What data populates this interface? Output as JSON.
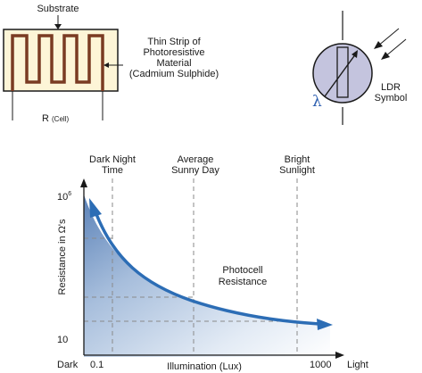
{
  "ldr_cell": {
    "substrate_label": "Substrate",
    "strip_label_line1": "Thin Strip of",
    "strip_label_line2": "Photoresistive",
    "strip_label_line3": "Material",
    "strip_label_line4": "(Cadmium Sulphide)",
    "resistance_label": "R",
    "resistance_sub": "(Cell)"
  },
  "ldr_symbol": {
    "lambda": "λ",
    "label_line1": "LDR",
    "label_line2": "Symbol"
  },
  "graph": {
    "markers": [
      {
        "line1": "Dark Night",
        "line2": "Time"
      },
      {
        "line1": "Average",
        "line2": "Sunny Day"
      },
      {
        "line1": "Bright",
        "line2": "Sunlight"
      }
    ],
    "y_axis_label": "Resistance in Ω's",
    "y_top_base": "10",
    "y_top_exp": "6",
    "y_bottom": "10",
    "x_label": "Illumination (Lux)",
    "x_left_word": "Dark",
    "x_left_value": "0.1",
    "x_right_value": "1000",
    "x_right_word": "Light",
    "curve_label_line1": "Photocell",
    "curve_label_line2": "Resistance"
  },
  "colors": {
    "substrate_fill": "#fdf5d7",
    "strip_color": "#7a3b22",
    "curve_color": "#2c6db5",
    "symbol_fill": "#c4c4de",
    "lambda_color": "#2d5fb0"
  }
}
